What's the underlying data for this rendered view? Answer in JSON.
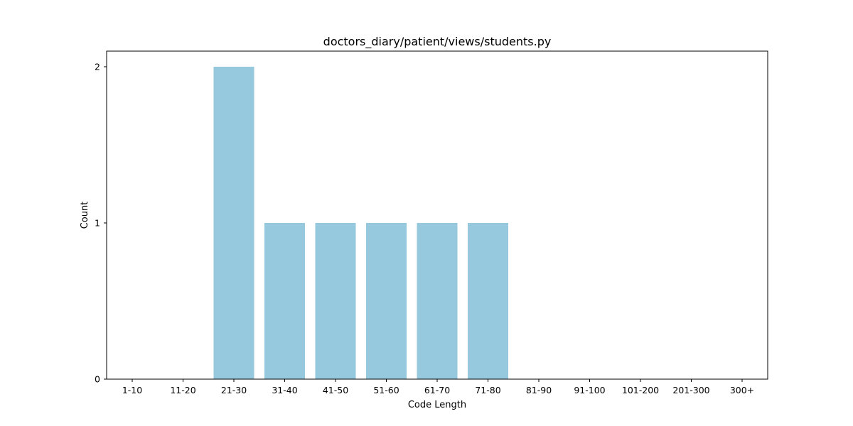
{
  "chart_data": {
    "type": "bar",
    "title": "doctors_diary/patient/views/students.py",
    "xlabel": "Code Length",
    "ylabel": "Count",
    "categories": [
      "1-10",
      "11-20",
      "21-30",
      "31-40",
      "41-50",
      "51-60",
      "61-70",
      "71-80",
      "81-90",
      "91-100",
      "101-200",
      "201-300",
      "300+"
    ],
    "values": [
      0,
      0,
      2,
      1,
      1,
      1,
      1,
      1,
      0,
      0,
      0,
      0,
      0
    ],
    "yticks": [
      0,
      1,
      2
    ],
    "ylim": [
      0,
      2.1
    ],
    "grid": false,
    "legend": "none",
    "bar_color": "#96c9dd"
  }
}
